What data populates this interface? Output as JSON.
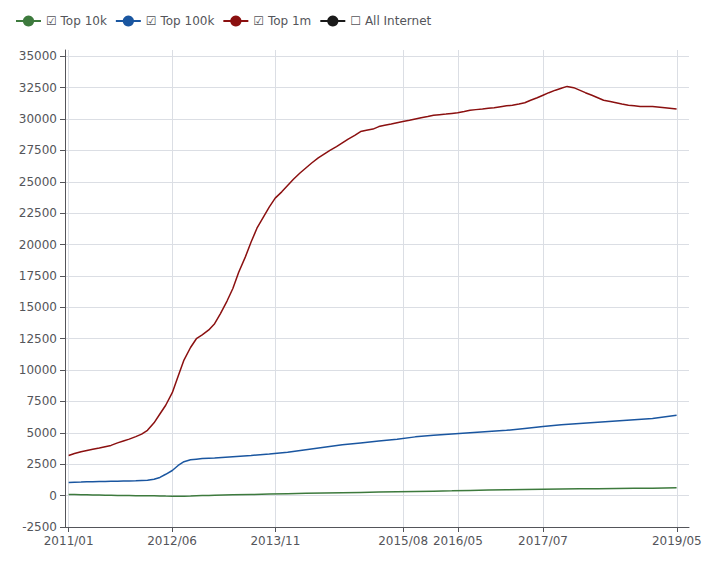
{
  "chart_data": {
    "type": "line",
    "grid": true,
    "legend": "upper left",
    "xlim": [
      2010.95,
      2019.5
    ],
    "xticks": [
      {
        "value": 2011.0,
        "label": "2011/01"
      },
      {
        "value": 2012.417,
        "label": "2012/06"
      },
      {
        "value": 2013.833,
        "label": "2013/11"
      },
      {
        "value": 2015.583,
        "label": "2015/08"
      },
      {
        "value": 2016.333,
        "label": "2016/05"
      },
      {
        "value": 2017.5,
        "label": "2017/07"
      },
      {
        "value": 2019.333,
        "label": "2019/05"
      }
    ],
    "ylim": [
      -2500,
      35500
    ],
    "yticks": [
      -2500,
      0,
      2500,
      5000,
      7500,
      10000,
      12500,
      15000,
      17500,
      20000,
      22500,
      25000,
      27500,
      30000,
      32500,
      35000
    ],
    "series": [
      {
        "name": "☑ Top 10k",
        "color": "#3d7a3d",
        "x": [
          2011.0,
          2011.08,
          2011.17,
          2011.25,
          2011.33,
          2011.42,
          2011.5,
          2011.58,
          2011.67,
          2011.75,
          2011.83,
          2011.92,
          2012.0,
          2012.08,
          2012.17,
          2012.25,
          2012.33,
          2012.42,
          2012.5,
          2012.58,
          2012.67,
          2012.75,
          2012.83,
          2012.92,
          2013.0,
          2013.25,
          2013.5,
          2013.75,
          2014.0,
          2014.25,
          2014.5,
          2014.75,
          2015.0,
          2015.25,
          2015.5,
          2015.75,
          2016.0,
          2016.25,
          2016.5,
          2016.75,
          2017.0,
          2017.25,
          2017.5,
          2017.75,
          2018.0,
          2018.25,
          2018.5,
          2018.75,
          2019.0,
          2019.33
        ],
        "values": [
          80,
          80,
          70,
          60,
          50,
          40,
          30,
          20,
          10,
          5,
          0,
          -5,
          -10,
          -15,
          -20,
          -30,
          -40,
          -50,
          -60,
          -50,
          -30,
          -10,
          0,
          10,
          30,
          60,
          90,
          120,
          150,
          180,
          210,
          230,
          255,
          280,
          305,
          330,
          355,
          380,
          410,
          440,
          460,
          480,
          500,
          520,
          540,
          555,
          570,
          580,
          590,
          620
        ]
      },
      {
        "name": "☑ Top 100k",
        "color": "#1a56a0",
        "x": [
          2011.0,
          2011.08,
          2011.17,
          2011.25,
          2011.33,
          2011.42,
          2011.5,
          2011.58,
          2011.67,
          2011.75,
          2011.83,
          2011.92,
          2012.0,
          2012.08,
          2012.17,
          2012.25,
          2012.33,
          2012.42,
          2012.5,
          2012.58,
          2012.67,
          2012.75,
          2012.83,
          2012.92,
          2013.0,
          2013.25,
          2013.5,
          2013.75,
          2014.0,
          2014.25,
          2014.5,
          2014.75,
          2015.0,
          2015.25,
          2015.5,
          2015.75,
          2016.0,
          2016.25,
          2016.5,
          2016.75,
          2017.0,
          2017.25,
          2017.5,
          2017.75,
          2018.0,
          2018.25,
          2018.5,
          2018.75,
          2019.0,
          2019.33
        ],
        "values": [
          1050,
          1070,
          1080,
          1100,
          1110,
          1120,
          1130,
          1140,
          1150,
          1160,
          1170,
          1180,
          1200,
          1220,
          1300,
          1450,
          1700,
          2000,
          2400,
          2700,
          2850,
          2900,
          2950,
          2980,
          3000,
          3100,
          3200,
          3320,
          3450,
          3650,
          3850,
          4050,
          4200,
          4350,
          4500,
          4680,
          4800,
          4900,
          5000,
          5100,
          5200,
          5350,
          5500,
          5650,
          5750,
          5850,
          5950,
          6050,
          6150,
          6400
        ]
      },
      {
        "name": "☑ Top 1m",
        "color": "#8b1010",
        "x": [
          2011.0,
          2011.08,
          2011.17,
          2011.25,
          2011.33,
          2011.42,
          2011.5,
          2011.58,
          2011.67,
          2011.75,
          2011.83,
          2011.92,
          2012.0,
          2012.08,
          2012.17,
          2012.25,
          2012.33,
          2012.42,
          2012.5,
          2012.58,
          2012.67,
          2012.75,
          2012.83,
          2012.92,
          2013.0,
          2013.08,
          2013.17,
          2013.25,
          2013.33,
          2013.42,
          2013.5,
          2013.58,
          2013.67,
          2013.75,
          2013.83,
          2013.92,
          2014.0,
          2014.08,
          2014.17,
          2014.25,
          2014.33,
          2014.42,
          2014.5,
          2014.58,
          2014.67,
          2014.75,
          2014.83,
          2014.92,
          2015.0,
          2015.08,
          2015.17,
          2015.25,
          2015.33,
          2015.42,
          2015.5,
          2015.58,
          2015.67,
          2015.75,
          2015.83,
          2015.92,
          2016.0,
          2016.08,
          2016.17,
          2016.25,
          2016.33,
          2016.42,
          2016.5,
          2016.58,
          2016.67,
          2016.75,
          2016.83,
          2016.92,
          2017.0,
          2017.08,
          2017.17,
          2017.25,
          2017.33,
          2017.42,
          2017.5,
          2017.58,
          2017.67,
          2017.75,
          2017.83,
          2017.92,
          2018.0,
          2018.08,
          2018.17,
          2018.25,
          2018.33,
          2018.42,
          2018.5,
          2018.58,
          2018.67,
          2018.75,
          2018.83,
          2018.92,
          2019.0,
          2019.17,
          2019.33
        ],
        "values": [
          3200,
          3350,
          3500,
          3600,
          3700,
          3800,
          3900,
          4000,
          4200,
          4350,
          4500,
          4700,
          4900,
          5200,
          5800,
          6500,
          7200,
          8200,
          9500,
          10800,
          11800,
          12500,
          12800,
          13200,
          13700,
          14500,
          15500,
          16500,
          17800,
          19000,
          20200,
          21300,
          22200,
          23000,
          23700,
          24200,
          24700,
          25200,
          25700,
          26100,
          26500,
          26900,
          27200,
          27500,
          27800,
          28100,
          28400,
          28700,
          29000,
          29100,
          29200,
          29400,
          29500,
          29600,
          29700,
          29800,
          29900,
          30000,
          30100,
          30200,
          30300,
          30350,
          30400,
          30450,
          30500,
          30600,
          30700,
          30750,
          30800,
          30850,
          30900,
          30980,
          31050,
          31100,
          31200,
          31300,
          31500,
          31700,
          31900,
          32100,
          32300,
          32450,
          32600,
          32500,
          32300,
          32100,
          31900,
          31700,
          31500,
          31400,
          31300,
          31200,
          31100,
          31050,
          31000,
          31000,
          31000,
          30900,
          30800
        ]
      },
      {
        "name": "☐ All Internet",
        "color": "#1a1a1a",
        "x": [],
        "values": []
      }
    ]
  }
}
